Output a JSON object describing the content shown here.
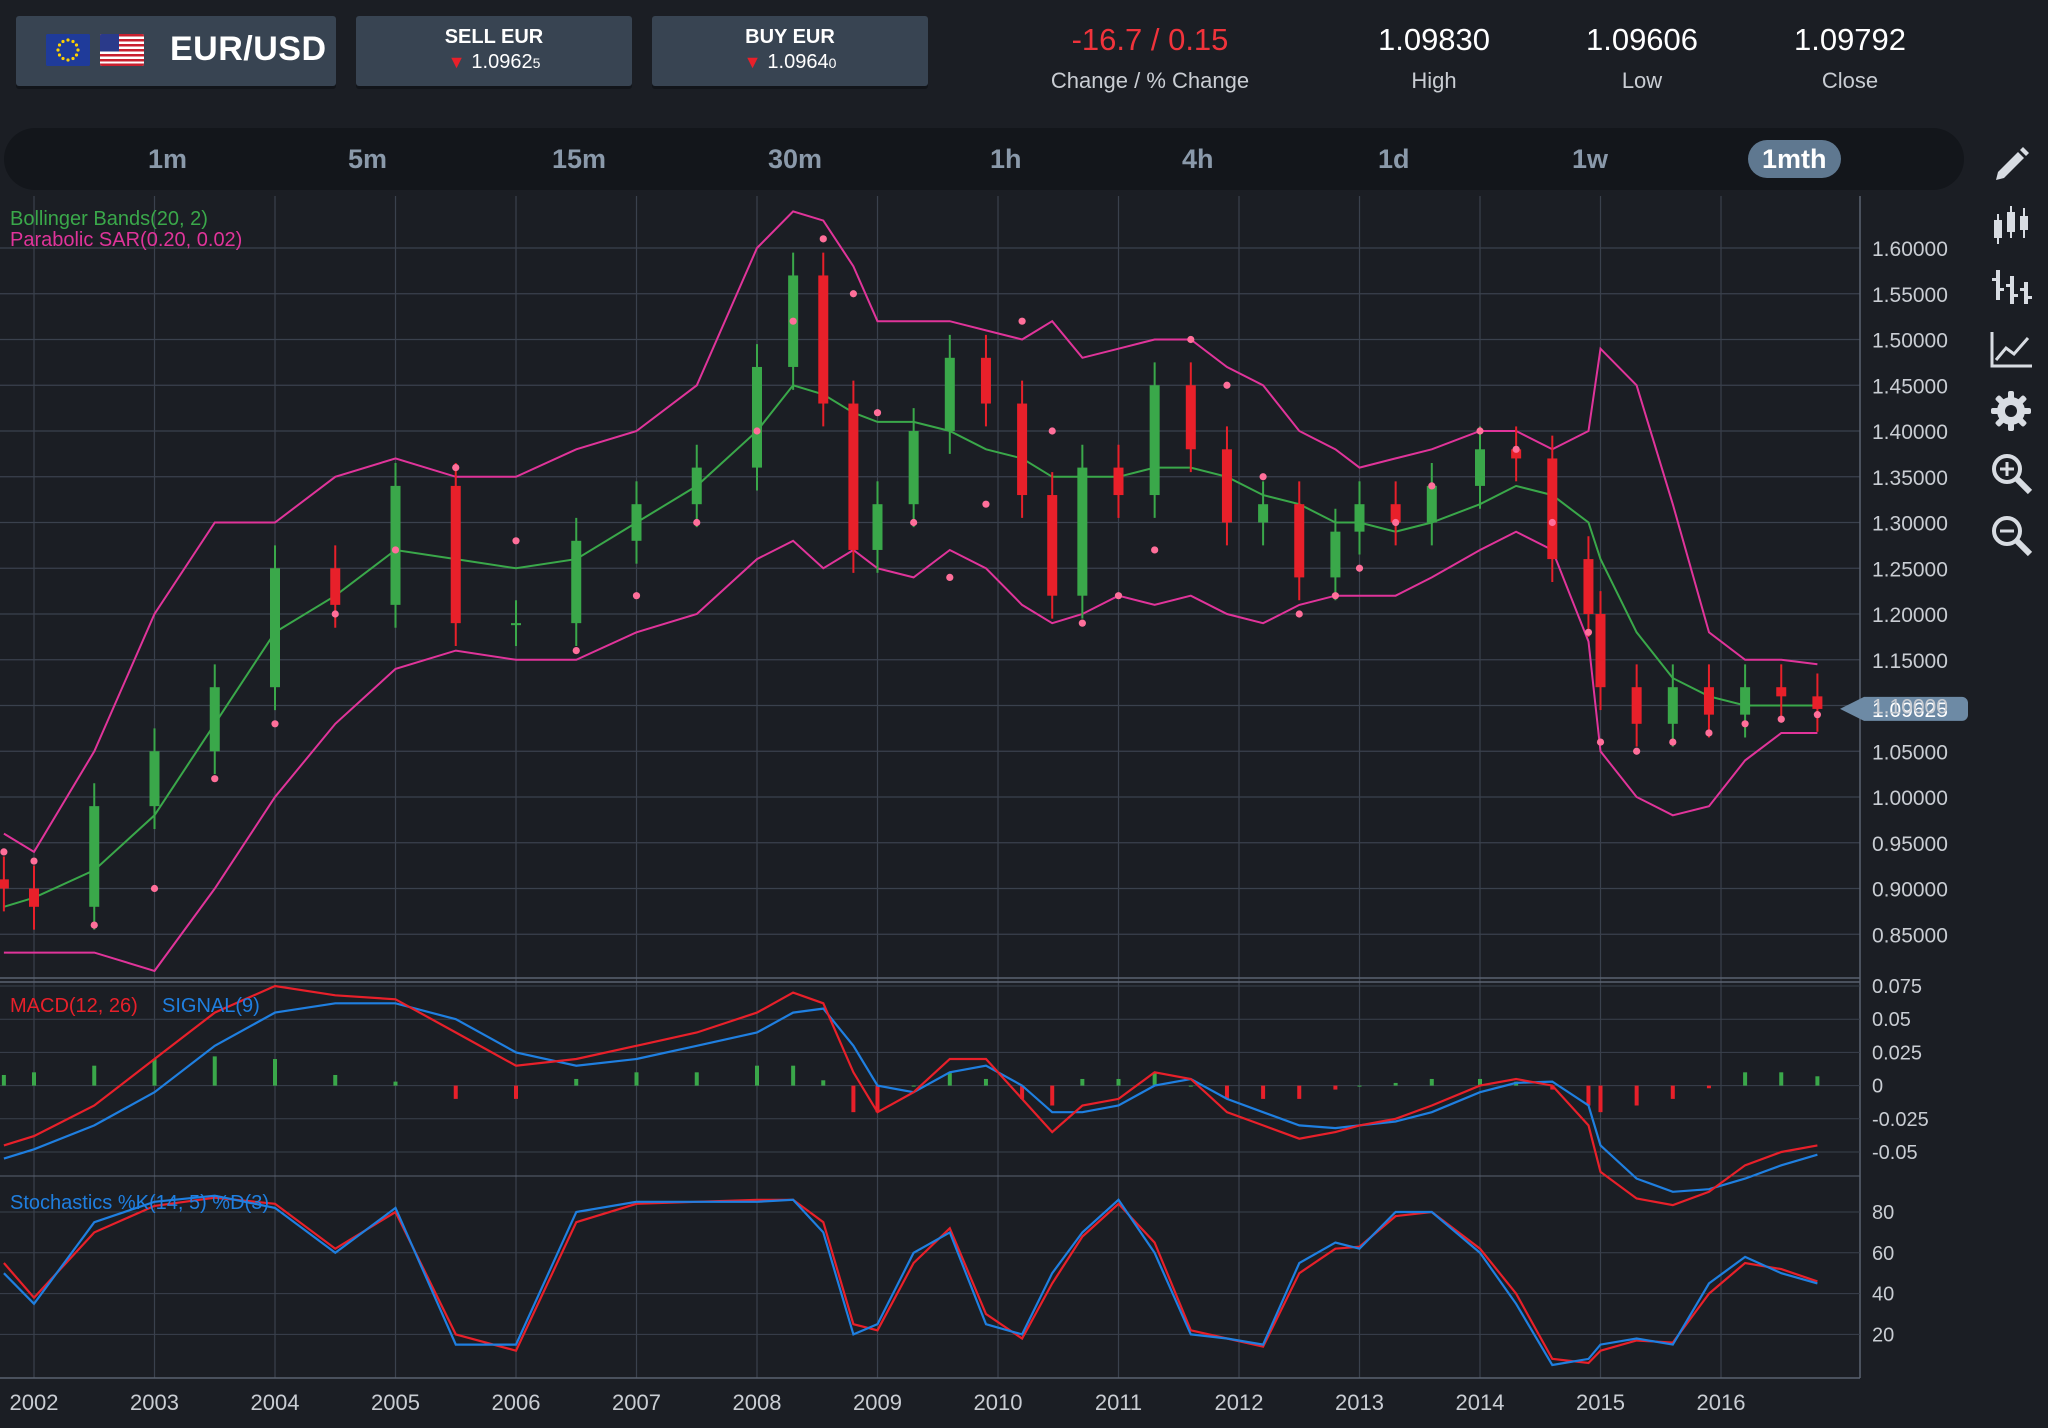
{
  "header": {
    "pair": "EUR/USD",
    "flags": [
      "eu-flag-icon",
      "us-flag-icon"
    ],
    "sell": {
      "label": "SELL EUR",
      "price": "1.0962",
      "pip": "5",
      "direction": "down"
    },
    "buy": {
      "label": "BUY EUR",
      "price": "1.0964",
      "pip": "0",
      "direction": "down"
    },
    "stats": [
      {
        "value": "-16.7 / 0.15",
        "label": "Change / % Change",
        "negative": true
      },
      {
        "value": "1.09830",
        "label": "High"
      },
      {
        "value": "1.09606",
        "label": "Low"
      },
      {
        "value": "1.09792",
        "label": "Close"
      }
    ]
  },
  "timeframes": [
    "1m",
    "5m",
    "15m",
    "30m",
    "1h",
    "4h",
    "1d",
    "1w",
    "1mth"
  ],
  "active_timeframe": "1mth",
  "tools": [
    "pencil-icon",
    "candlestick-icon",
    "bar-chart-icon",
    "line-chart-icon",
    "gear-icon",
    "zoom-in-icon",
    "zoom-out-icon"
  ],
  "colors": {
    "up": "#3aa84a",
    "down": "#e8202a",
    "bb_outer": "#e0349a",
    "bb_mid": "#3aa84a",
    "sar": "#ff6f9a",
    "macd": "#e8202a",
    "signal": "#1f7fe0",
    "stoch_k": "#1f7fe0",
    "stoch_d": "#e8202a",
    "grid": "#3a414d",
    "price_tag": "#6d8aa5"
  },
  "chart_data": [
    {
      "type": "candlestick",
      "title": "EUR/USD",
      "timeframe": "1mth",
      "indicators": [
        "Bollinger Bands(20, 2)",
        "Parabolic SAR(0.20, 0.02)"
      ],
      "legend": [
        "Bollinger Bands(20, 2)",
        "Parabolic SAR(0.20, 0.02)"
      ],
      "x_tick_labels": [
        "2002",
        "2003",
        "2004",
        "2005",
        "2006",
        "2007",
        "2008",
        "2009",
        "2010",
        "2011",
        "2012",
        "2013",
        "2014",
        "2015",
        "2016"
      ],
      "y_tick_labels": [
        "1.60000",
        "1.55000",
        "1.50000",
        "1.45000",
        "1.40000",
        "1.35000",
        "1.30000",
        "1.25000",
        "1.20000",
        "1.15000",
        "1.10000",
        "1.05000",
        "1.00000",
        "0.95000",
        "0.90000",
        "0.85000"
      ],
      "ylim": [
        0.82,
        1.66
      ],
      "current_price": "1.09625",
      "x_years": [
        2001.75,
        2002.0,
        2002.5,
        2003.0,
        2003.5,
        2004.0,
        2004.5,
        2005.0,
        2005.5,
        2006.0,
        2006.5,
        2007.0,
        2007.5,
        2008.0,
        2008.3,
        2008.55,
        2008.8,
        2009.0,
        2009.3,
        2009.6,
        2009.9,
        2010.2,
        2010.45,
        2010.7,
        2011.0,
        2011.3,
        2011.6,
        2011.9,
        2012.2,
        2012.5,
        2012.8,
        2013.0,
        2013.3,
        2013.6,
        2014.0,
        2014.3,
        2014.6,
        2014.9,
        2015.0,
        2015.3,
        2015.6,
        2015.9,
        2016.2,
        2016.5,
        2016.8
      ],
      "close": [
        0.9,
        0.88,
        0.99,
        1.05,
        1.12,
        1.25,
        1.21,
        1.34,
        1.19,
        1.19,
        1.28,
        1.32,
        1.36,
        1.47,
        1.57,
        1.43,
        1.27,
        1.32,
        1.4,
        1.48,
        1.43,
        1.33,
        1.22,
        1.36,
        1.33,
        1.45,
        1.38,
        1.3,
        1.32,
        1.24,
        1.29,
        1.32,
        1.3,
        1.34,
        1.38,
        1.37,
        1.26,
        1.2,
        1.12,
        1.08,
        1.12,
        1.09,
        1.12,
        1.11,
        1.09625
      ],
      "bb_upper": [
        0.96,
        0.94,
        1.05,
        1.2,
        1.3,
        1.3,
        1.35,
        1.37,
        1.35,
        1.35,
        1.38,
        1.4,
        1.45,
        1.6,
        1.64,
        1.63,
        1.58,
        1.52,
        1.52,
        1.52,
        1.51,
        1.5,
        1.52,
        1.48,
        1.49,
        1.5,
        1.5,
        1.47,
        1.45,
        1.4,
        1.38,
        1.36,
        1.37,
        1.38,
        1.4,
        1.4,
        1.38,
        1.4,
        1.49,
        1.45,
        1.32,
        1.18,
        1.15,
        1.15,
        1.145
      ],
      "bb_mid": [
        0.88,
        0.89,
        0.92,
        0.98,
        1.08,
        1.18,
        1.22,
        1.27,
        1.26,
        1.25,
        1.26,
        1.3,
        1.34,
        1.4,
        1.45,
        1.44,
        1.42,
        1.41,
        1.41,
        1.4,
        1.38,
        1.37,
        1.35,
        1.35,
        1.35,
        1.36,
        1.36,
        1.35,
        1.33,
        1.32,
        1.3,
        1.3,
        1.29,
        1.3,
        1.32,
        1.34,
        1.33,
        1.3,
        1.26,
        1.18,
        1.13,
        1.11,
        1.1,
        1.1,
        1.1
      ],
      "bb_lower": [
        0.83,
        0.83,
        0.83,
        0.81,
        0.9,
        1.0,
        1.08,
        1.14,
        1.16,
        1.15,
        1.15,
        1.18,
        1.2,
        1.26,
        1.28,
        1.25,
        1.27,
        1.25,
        1.24,
        1.27,
        1.25,
        1.21,
        1.19,
        1.2,
        1.22,
        1.21,
        1.22,
        1.2,
        1.19,
        1.21,
        1.22,
        1.22,
        1.22,
        1.24,
        1.27,
        1.29,
        1.27,
        1.17,
        1.05,
        1.0,
        0.98,
        0.99,
        1.04,
        1.07,
        1.07
      ],
      "sar": [
        0.94,
        0.93,
        0.86,
        0.9,
        1.02,
        1.08,
        1.2,
        1.27,
        1.36,
        1.28,
        1.16,
        1.22,
        1.3,
        1.4,
        1.52,
        1.61,
        1.55,
        1.42,
        1.3,
        1.24,
        1.32,
        1.52,
        1.4,
        1.19,
        1.22,
        1.27,
        1.5,
        1.45,
        1.35,
        1.2,
        1.22,
        1.25,
        1.3,
        1.34,
        1.4,
        1.38,
        1.3,
        1.18,
        1.06,
        1.05,
        1.06,
        1.07,
        1.08,
        1.085,
        1.09
      ]
    },
    {
      "type": "line",
      "title": "MACD(12, 26) SIGNAL(9)",
      "series": [
        {
          "name": "MACD(12, 26)",
          "values": [
            -0.045,
            -0.038,
            -0.015,
            0.02,
            0.055,
            0.075,
            0.068,
            0.065,
            0.04,
            0.015,
            0.02,
            0.03,
            0.04,
            0.055,
            0.07,
            0.062,
            0.01,
            -0.02,
            -0.005,
            0.02,
            0.02,
            -0.01,
            -0.035,
            -0.015,
            -0.01,
            0.01,
            0.005,
            -0.02,
            -0.03,
            -0.04,
            -0.035,
            -0.03,
            -0.025,
            -0.015,
            -0.0,
            0.005,
            0.0,
            -0.03,
            -0.065,
            -0.085,
            -0.09,
            -0.08,
            -0.06,
            -0.05,
            -0.045
          ]
        },
        {
          "name": "SIGNAL(9)",
          "values": [
            -0.055,
            -0.048,
            -0.03,
            -0.005,
            0.03,
            0.055,
            0.062,
            0.062,
            0.05,
            0.025,
            0.015,
            0.02,
            0.03,
            0.04,
            0.055,
            0.058,
            0.03,
            0.0,
            -0.005,
            0.01,
            0.015,
            0.0,
            -0.02,
            -0.02,
            -0.015,
            0.0,
            0.005,
            -0.01,
            -0.02,
            -0.03,
            -0.032,
            -0.03,
            -0.027,
            -0.02,
            -0.005,
            0.002,
            0.003,
            -0.015,
            -0.045,
            -0.07,
            -0.08,
            -0.078,
            -0.07,
            -0.06,
            -0.052
          ]
        }
      ],
      "histogram": [
        0.008,
        0.01,
        0.015,
        0.02,
        0.022,
        0.02,
        0.008,
        0.003,
        -0.01,
        -0.01,
        0.005,
        0.01,
        0.01,
        0.015,
        0.015,
        0.004,
        -0.02,
        -0.02,
        0.0,
        0.01,
        0.005,
        -0.01,
        -0.015,
        0.005,
        0.005,
        0.01,
        0.0,
        -0.01,
        -0.01,
        -0.01,
        -0.003,
        0.0,
        0.002,
        0.005,
        0.005,
        0.003,
        -0.003,
        -0.015,
        -0.02,
        -0.015,
        -0.01,
        -0.002,
        0.01,
        0.01,
        0.007
      ],
      "y_tick_labels": [
        "0.075",
        "0.05",
        "0.025",
        "0",
        "-0.025",
        "-0.05"
      ],
      "ylim": [
        -0.075,
        0.085
      ]
    },
    {
      "type": "line",
      "title": "Stochastics %K(14, 5) %D(3)",
      "series": [
        {
          "name": "%K(14, 5)",
          "values": [
            50,
            35,
            75,
            85,
            88,
            82,
            60,
            82,
            15,
            15,
            80,
            85,
            85,
            85,
            86,
            70,
            20,
            25,
            60,
            70,
            25,
            20,
            50,
            70,
            86,
            60,
            20,
            18,
            15,
            55,
            65,
            62,
            80,
            80,
            60,
            35,
            5,
            8,
            15,
            18,
            15,
            45,
            58,
            50,
            45
          ]
        },
        {
          "name": "%D(3)",
          "values": [
            55,
            38,
            70,
            83,
            87,
            84,
            62,
            80,
            20,
            12,
            75,
            84,
            85,
            86,
            86,
            75,
            25,
            22,
            55,
            72,
            30,
            18,
            45,
            68,
            84,
            65,
            22,
            18,
            14,
            50,
            62,
            63,
            78,
            80,
            62,
            40,
            8,
            6,
            12,
            17,
            16,
            40,
            55,
            52,
            46
          ]
        }
      ],
      "y_tick_labels": [
        "80",
        "60",
        "40",
        "20"
      ],
      "ylim": [
        0,
        100
      ]
    }
  ]
}
